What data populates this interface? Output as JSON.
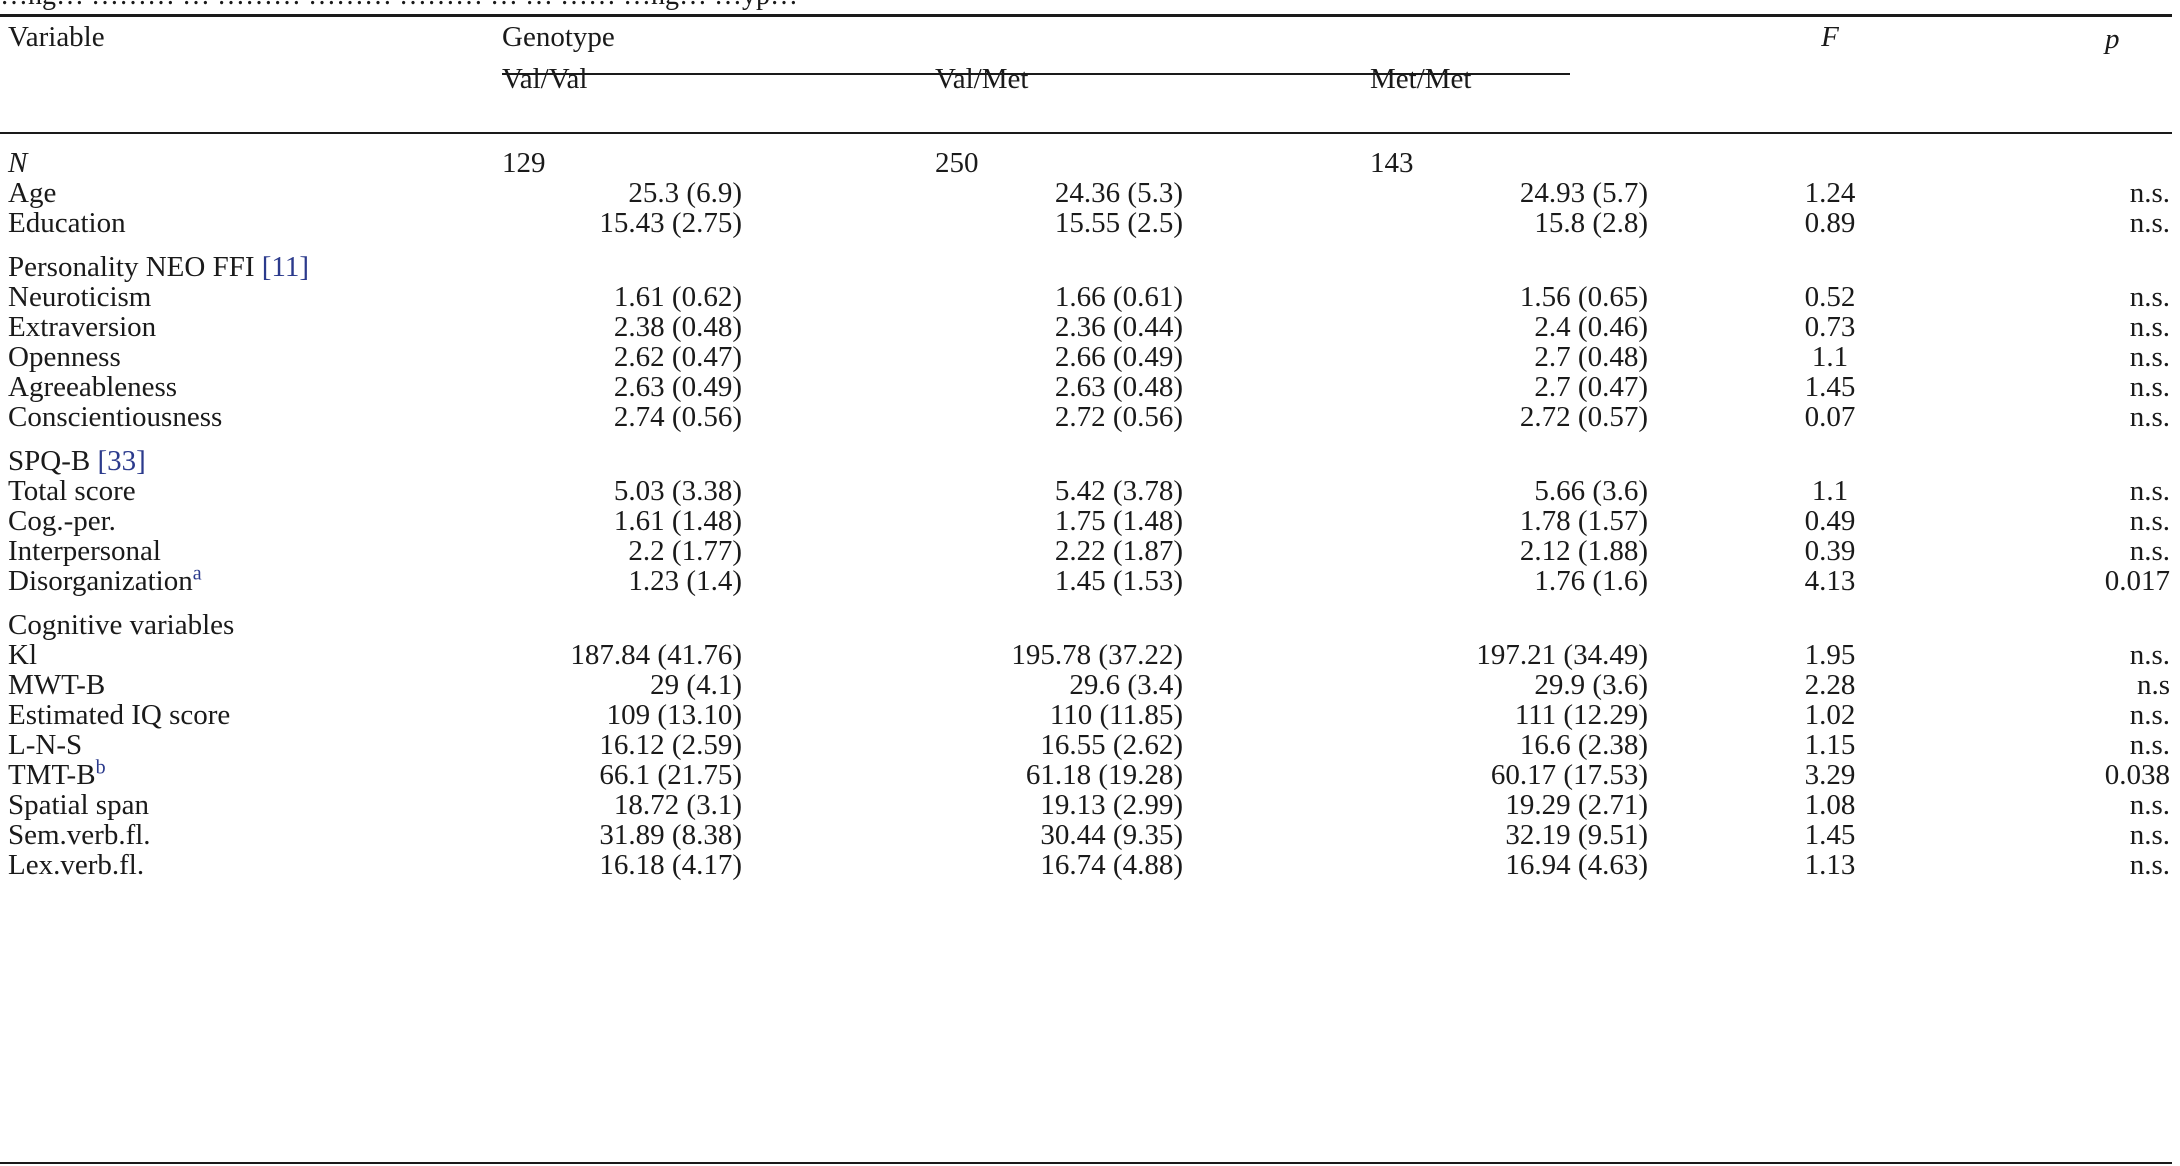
{
  "caption": "…ng… ……… … ……… ……… ……… … … …… …ng… …yp…",
  "headers": {
    "variable": "Variable",
    "genotype": "Genotype",
    "val_val": "Val/Val",
    "val_met": "Val/Met",
    "met_met": "Met/Met",
    "f": "F",
    "p": "p"
  },
  "n_row": {
    "label": "N",
    "vv": "129",
    "vm": "250",
    "mm": "143"
  },
  "rows": [
    {
      "type": "data",
      "label": "Age",
      "vv": "25.3 (6.9)",
      "vm": "24.36 (5.3)",
      "mm": "24.93 (5.7)",
      "f": "1.24",
      "p": "n.s."
    },
    {
      "type": "data",
      "label": "Education",
      "vv": "15.43 (2.75)",
      "vm": "15.55 (2.5)",
      "mm": "15.8 (2.8)",
      "f": "0.89",
      "p": "n.s."
    },
    {
      "type": "section",
      "label": "Personality NEO FFI ",
      "ref": "[11]"
    },
    {
      "type": "data",
      "label": "Neuroticism",
      "vv": "1.61 (0.62)",
      "vm": "1.66 (0.61)",
      "mm": "1.56 (0.65)",
      "f": "0.52",
      "p": "n.s."
    },
    {
      "type": "data",
      "label": "Extraversion",
      "vv": "2.38 (0.48)",
      "vm": "2.36 (0.44)",
      "mm": "2.4 (0.46)",
      "f": "0.73",
      "p": "n.s."
    },
    {
      "type": "data",
      "label": "Openness",
      "vv": "2.62 (0.47)",
      "vm": "2.66 (0.49)",
      "mm": "2.7 (0.48)",
      "f": "1.1",
      "p": "n.s."
    },
    {
      "type": "data",
      "label": "Agreeableness",
      "vv": "2.63 (0.49)",
      "vm": "2.63 (0.48)",
      "mm": "2.7 (0.47)",
      "f": "1.45",
      "p": "n.s."
    },
    {
      "type": "data",
      "label": "Conscientiousness",
      "vv": "2.74 (0.56)",
      "vm": "2.72 (0.56)",
      "mm": "2.72 (0.57)",
      "f": "0.07",
      "p": "n.s."
    },
    {
      "type": "section",
      "label": "SPQ-B ",
      "ref": "[33]"
    },
    {
      "type": "data",
      "label": "Total score",
      "vv": "5.03 (3.38)",
      "vm": "5.42 (3.78)",
      "mm": "5.66 (3.6)",
      "f": "1.1",
      "p": "n.s."
    },
    {
      "type": "data",
      "label": "Cog.-per.",
      "vv": "1.61 (1.48)",
      "vm": "1.75 (1.48)",
      "mm": "1.78 (1.57)",
      "f": "0.49",
      "p": "n.s."
    },
    {
      "type": "data",
      "label": "Interpersonal",
      "vv": "2.2 (1.77)",
      "vm": "2.22 (1.87)",
      "mm": "2.12 (1.88)",
      "f": "0.39",
      "p": "n.s."
    },
    {
      "type": "data",
      "label": "Disorganization",
      "sup": "a",
      "vv": "1.23 (1.4)",
      "vm": "1.45 (1.53)",
      "mm": "1.76 (1.6)",
      "f": "4.13",
      "p": "0.017"
    },
    {
      "type": "section",
      "label": "Cognitive variables",
      "ref": ""
    },
    {
      "type": "data",
      "label": "Kl",
      "vv": "187.84 (41.76)",
      "vm": "195.78 (37.22)",
      "mm": "197.21 (34.49)",
      "f": "1.95",
      "p": "n.s."
    },
    {
      "type": "data",
      "label": "MWT-B",
      "vv": "29 (4.1)",
      "vm": "29.6 (3.4)",
      "mm": "29.9 (3.6)",
      "f": "2.28",
      "p": "n.s"
    },
    {
      "type": "data",
      "label": "Estimated IQ score",
      "vv": "109 (13.10)",
      "vm": "110 (11.85)",
      "mm": "111 (12.29)",
      "f": "1.02",
      "p": "n.s."
    },
    {
      "type": "data",
      "label": "L-N-S",
      "vv": "16.12 (2.59)",
      "vm": "16.55 (2.62)",
      "mm": "16.6 (2.38)",
      "f": "1.15",
      "p": "n.s."
    },
    {
      "type": "data",
      "label": "TMT-B",
      "sup": "b",
      "vv": "66.1 (21.75)",
      "vm": "61.18 (19.28)",
      "mm": "60.17 (17.53)",
      "f": "3.29",
      "p": "0.038"
    },
    {
      "type": "data",
      "label": "Spatial span",
      "vv": "18.72 (3.1)",
      "vm": "19.13 (2.99)",
      "mm": "19.29 (2.71)",
      "f": "1.08",
      "p": "n.s."
    },
    {
      "type": "data",
      "label": "Sem.verb.fl.",
      "vv": "31.89 (8.38)",
      "vm": "30.44 (9.35)",
      "mm": "32.19 (9.51)",
      "f": "1.45",
      "p": "n.s."
    },
    {
      "type": "data",
      "label": "Lex.verb.fl.",
      "vv": "16.18 (4.17)",
      "vm": "16.74 (4.88)",
      "mm": "16.94 (4.63)",
      "f": "1.13",
      "p": "n.s."
    }
  ]
}
